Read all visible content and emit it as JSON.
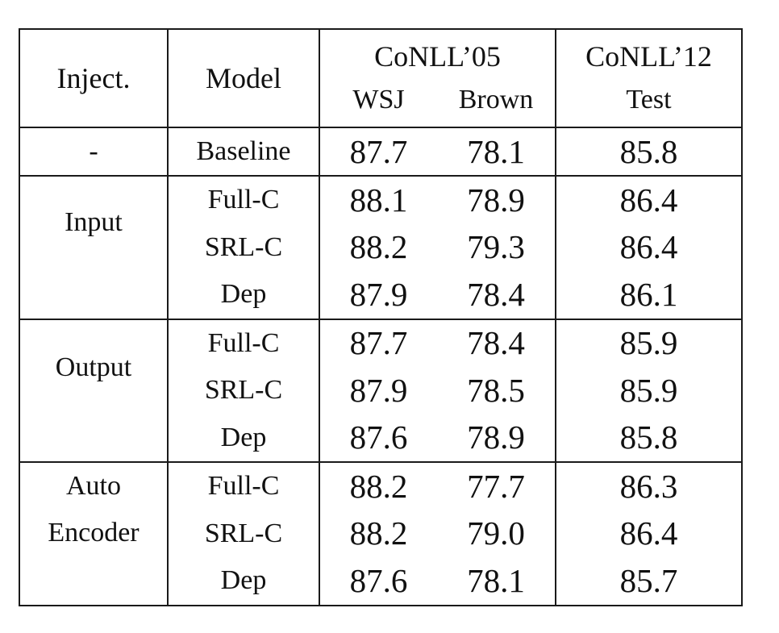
{
  "header": {
    "inject": "Inject.",
    "model": "Model",
    "conll05": "CoNLL’05",
    "conll12": "CoNLL’12",
    "wsj": "WSJ",
    "brown": "Brown",
    "test": "Test"
  },
  "baseline": {
    "inject": "-",
    "model": "Baseline",
    "wsj": "87.7",
    "brown": "78.1",
    "test": "85.8"
  },
  "groups": [
    {
      "inject": "Input",
      "rows": [
        {
          "model": "Full-C",
          "wsj": "88.1",
          "brown": "78.9",
          "test": "86.4",
          "bold": [
            "test"
          ]
        },
        {
          "model": "SRL-C",
          "wsj": "88.2",
          "brown": "79.3",
          "test": "86.4",
          "bold": [
            "wsj",
            "brown",
            "test"
          ]
        },
        {
          "model": "Dep",
          "wsj": "87.9",
          "brown": "78.4",
          "test": "86.1",
          "bold": []
        }
      ]
    },
    {
      "inject": "Output",
      "rows": [
        {
          "model": "Full-C",
          "wsj": "87.7",
          "brown": "78.4",
          "test": "85.9",
          "bold": []
        },
        {
          "model": "SRL-C",
          "wsj": "87.9",
          "brown": "78.5",
          "test": "85.9",
          "bold": []
        },
        {
          "model": "Dep",
          "wsj": "87.6",
          "brown": "78.9",
          "test": "85.8",
          "bold": []
        }
      ]
    },
    {
      "inject_line1": "Auto",
      "inject_line2": "Encoder",
      "rows": [
        {
          "model": "Full-C",
          "wsj": "88.2",
          "brown": "77.7",
          "test": "86.3",
          "bold": [
            "wsj"
          ]
        },
        {
          "model": "SRL-C",
          "wsj": "88.2",
          "brown": "79.0",
          "test": "86.4",
          "bold": [
            "wsj",
            "test"
          ]
        },
        {
          "model": "Dep",
          "wsj": "87.6",
          "brown": "78.1",
          "test": "85.7",
          "bold": []
        }
      ]
    }
  ]
}
